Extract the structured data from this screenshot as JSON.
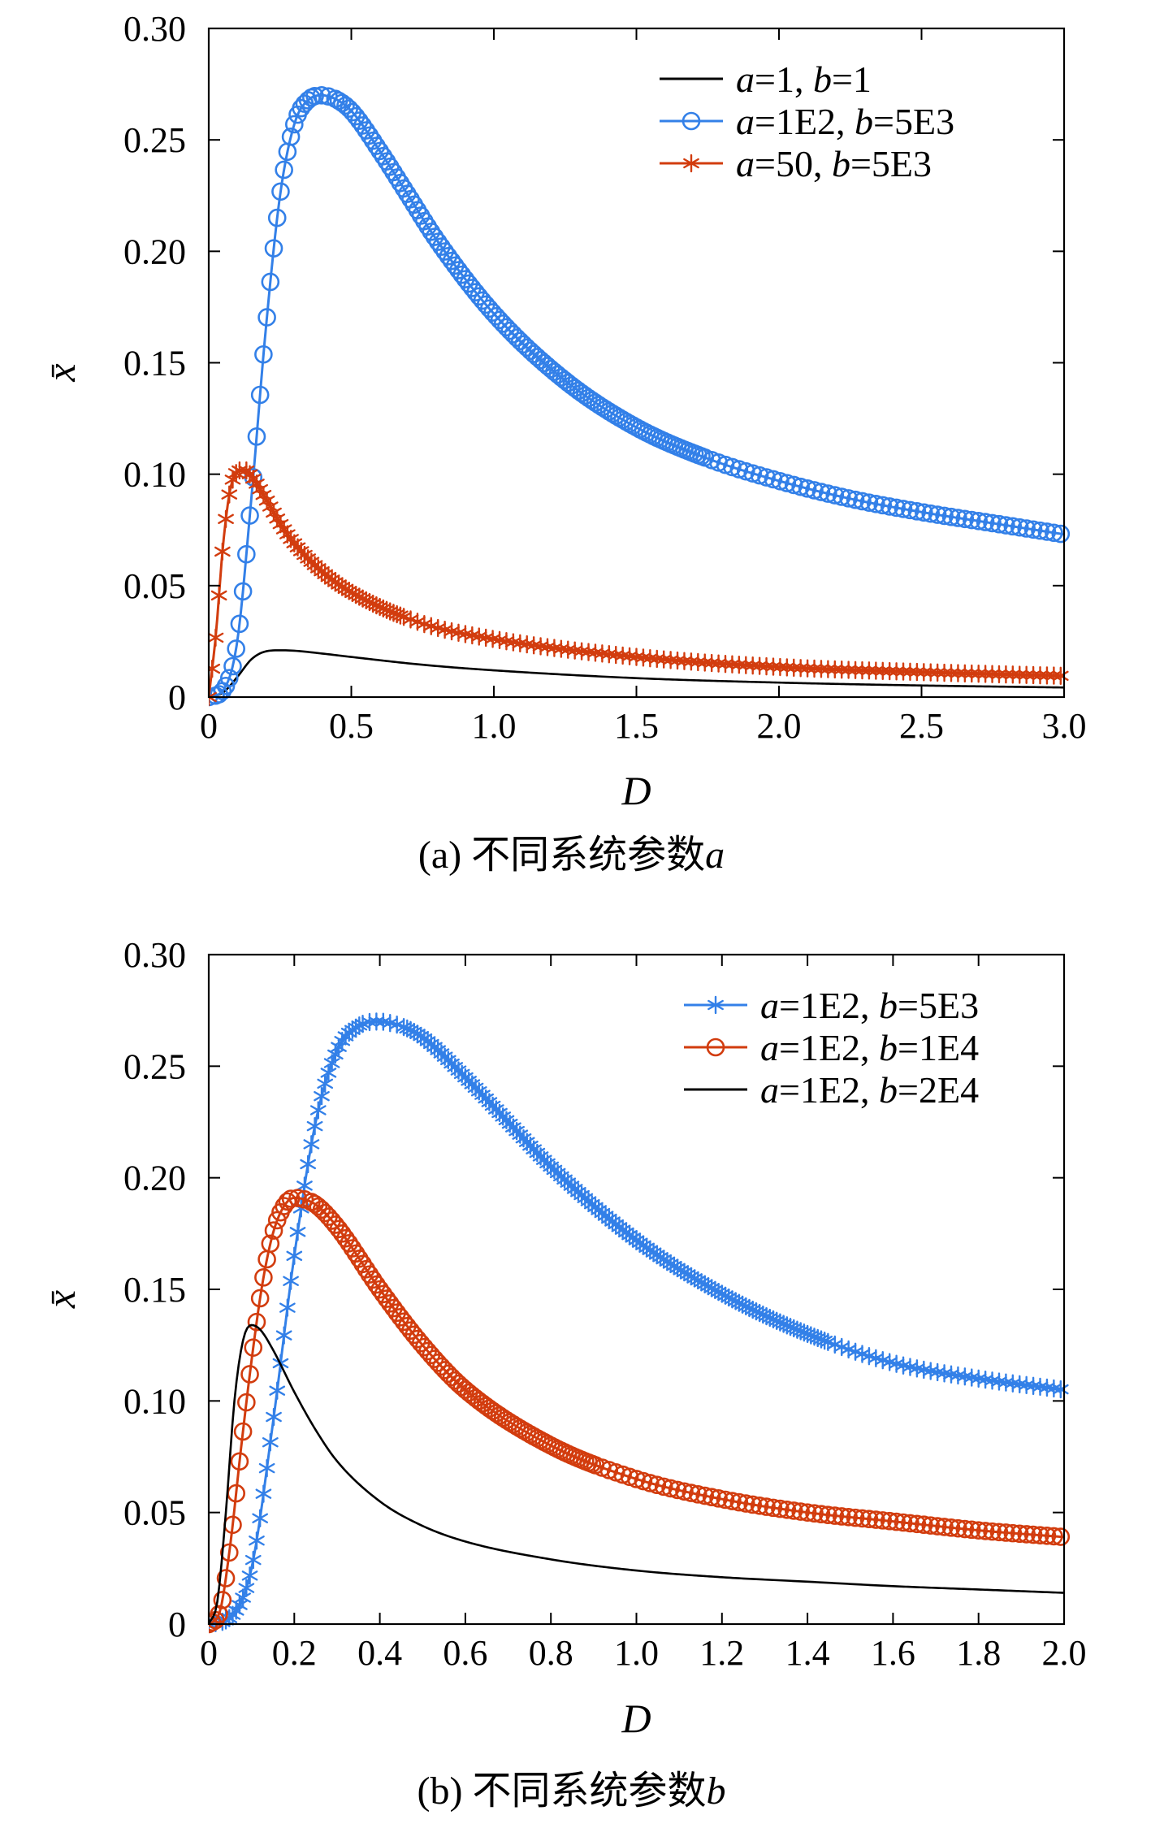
{
  "chart_data": [
    {
      "type": "line",
      "panel_label": "(a) 不同系统参数",
      "panel_var": "a",
      "xlabel": "D",
      "ylabel": "x̄",
      "xlim": [
        0,
        3.0
      ],
      "ylim": [
        0,
        0.3
      ],
      "xticks": [
        0,
        0.5,
        1.0,
        1.5,
        2.0,
        2.5,
        3.0
      ],
      "xtick_labels": [
        "0",
        "0.5",
        "1.0",
        "1.5",
        "2.0",
        "2.5",
        "3.0"
      ],
      "yticks": [
        0,
        0.05,
        0.1,
        0.15,
        0.2,
        0.25,
        0.3
      ],
      "ytick_labels": [
        "0",
        "0.05",
        "0.10",
        "0.15",
        "0.20",
        "0.25",
        "0.30"
      ],
      "legend_position": "top-right",
      "series": [
        {
          "name": "a=1, b=1",
          "a": "1",
          "b": "1",
          "color": "#000000",
          "marker": "none",
          "x": [
            0,
            0.05,
            0.1,
            0.15,
            0.2,
            0.25,
            0.3,
            0.4,
            0.5,
            0.75,
            1.0,
            1.5,
            2.0,
            2.5,
            3.0
          ],
          "y": [
            0,
            0.002,
            0.009,
            0.017,
            0.0205,
            0.021,
            0.0208,
            0.0195,
            0.018,
            0.0145,
            0.012,
            0.0085,
            0.0065,
            0.0052,
            0.0043
          ]
        },
        {
          "name": "a=1E2, b=5E3",
          "a": "1E2",
          "b": "5E3",
          "color": "#3380e8",
          "marker": "circle",
          "x": [
            0,
            0.05,
            0.1,
            0.15,
            0.2,
            0.25,
            0.3,
            0.35,
            0.4,
            0.42,
            0.45,
            0.5,
            0.6,
            0.7,
            0.8,
            1.0,
            1.25,
            1.5,
            1.75,
            2.0,
            2.25,
            2.5,
            2.75,
            3.0
          ],
          "y": [
            0,
            0.003,
            0.025,
            0.09,
            0.165,
            0.225,
            0.257,
            0.268,
            0.27,
            0.2695,
            0.268,
            0.263,
            0.245,
            0.225,
            0.205,
            0.172,
            0.142,
            0.121,
            0.107,
            0.097,
            0.089,
            0.083,
            0.078,
            0.073
          ]
        },
        {
          "name": "a=50, b=5E3",
          "a": "50",
          "b": "5E3",
          "color": "#d23c0e",
          "marker": "asterisk",
          "x": [
            0,
            0.025,
            0.05,
            0.075,
            0.1,
            0.125,
            0.15,
            0.2,
            0.25,
            0.3,
            0.4,
            0.5,
            0.75,
            1.0,
            1.5,
            2.0,
            2.5,
            3.0
          ],
          "y": [
            0,
            0.028,
            0.068,
            0.093,
            0.101,
            0.102,
            0.099,
            0.089,
            0.078,
            0.069,
            0.056,
            0.047,
            0.033,
            0.026,
            0.018,
            0.0135,
            0.0112,
            0.0095
          ]
        }
      ]
    },
    {
      "type": "line",
      "panel_label": "(b) 不同系统参数",
      "panel_var": "b",
      "xlabel": "D",
      "ylabel": "x̄",
      "xlim": [
        0,
        2.0
      ],
      "ylim": [
        0,
        0.3
      ],
      "xticks": [
        0,
        0.2,
        0.4,
        0.6,
        0.8,
        1.0,
        1.2,
        1.4,
        1.6,
        1.8,
        2.0
      ],
      "xtick_labels": [
        "0",
        "0.2",
        "0.4",
        "0.6",
        "0.8",
        "1.0",
        "1.2",
        "1.4",
        "1.6",
        "1.8",
        "2.0"
      ],
      "yticks": [
        0,
        0.05,
        0.1,
        0.15,
        0.2,
        0.25,
        0.3
      ],
      "ytick_labels": [
        "0",
        "0.05",
        "0.10",
        "0.15",
        "0.20",
        "0.25",
        "0.30"
      ],
      "legend_position": "top-right",
      "series": [
        {
          "name": "a=1E2, b=5E3",
          "a": "1E2",
          "b": "5E3",
          "color": "#3380e8",
          "marker": "asterisk",
          "x": [
            0,
            0.05,
            0.1,
            0.15,
            0.2,
            0.25,
            0.3,
            0.35,
            0.4,
            0.42,
            0.45,
            0.5,
            0.6,
            0.7,
            0.8,
            1.0,
            1.2,
            1.4,
            1.6,
            1.8,
            2.0
          ],
          "y": [
            0,
            0.003,
            0.025,
            0.09,
            0.165,
            0.225,
            0.257,
            0.268,
            0.27,
            0.2695,
            0.268,
            0.263,
            0.245,
            0.225,
            0.205,
            0.172,
            0.148,
            0.13,
            0.117,
            0.11,
            0.105
          ]
        },
        {
          "name": "a=1E2, b=1E4",
          "a": "1E2",
          "b": "1E4",
          "color": "#d23c0e",
          "marker": "circle",
          "x": [
            0,
            0.025,
            0.05,
            0.075,
            0.1,
            0.125,
            0.15,
            0.175,
            0.2,
            0.22,
            0.25,
            0.3,
            0.4,
            0.5,
            0.6,
            0.8,
            1.0,
            1.2,
            1.4,
            1.6,
            1.8,
            2.0
          ],
          "y": [
            0,
            0.005,
            0.035,
            0.078,
            0.118,
            0.152,
            0.175,
            0.187,
            0.191,
            0.1905,
            0.188,
            0.178,
            0.15,
            0.125,
            0.105,
            0.08,
            0.065,
            0.056,
            0.05,
            0.046,
            0.042,
            0.039
          ]
        },
        {
          "name": "a=1E2, b=2E4",
          "a": "1E2",
          "b": "2E4",
          "color": "#000000",
          "marker": "none",
          "x": [
            0,
            0.02,
            0.04,
            0.06,
            0.08,
            0.1,
            0.12,
            0.15,
            0.2,
            0.25,
            0.3,
            0.4,
            0.5,
            0.6,
            0.8,
            1.0,
            1.2,
            1.4,
            1.6,
            1.8,
            2.0
          ],
          "y": [
            0,
            0.01,
            0.05,
            0.1,
            0.127,
            0.134,
            0.132,
            0.123,
            0.104,
            0.087,
            0.073,
            0.055,
            0.044,
            0.037,
            0.029,
            0.024,
            0.021,
            0.019,
            0.017,
            0.0155,
            0.014
          ]
        }
      ]
    }
  ]
}
